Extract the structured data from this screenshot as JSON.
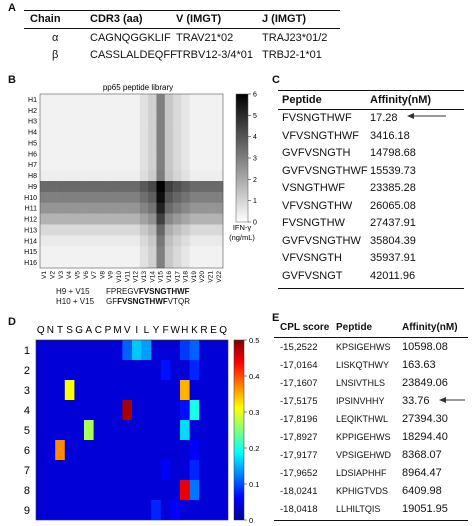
{
  "panel_a": {
    "label": "A",
    "headers": [
      "Chain",
      "CDR3 (aa)",
      "V (IMGT)",
      "J (IMGT)"
    ],
    "rows": [
      [
        "α",
        "CAGNQGGKLIF",
        "TRAV21*02",
        "TRAJ23*01/2"
      ],
      [
        "β",
        "CASSLALDEQFF",
        "TRBV12-3/4*01",
        "TRBJ2-1*01"
      ]
    ]
  },
  "panel_b": {
    "label": "B",
    "title": "pp65 peptide library",
    "colorbar_label_line1": "IFN-γ",
    "colorbar_label_line2": "(ng/mL)",
    "seq1": {
      "tag": "H9 + V15",
      "pre": "FPREGV",
      "bold": "FVSNGTHWF",
      "post": ""
    },
    "seq2": {
      "tag": "H10 + V15",
      "pre": "GF",
      "bold": "FVSNGTHWF",
      "post": "VTQR"
    }
  },
  "panel_c": {
    "label": "C",
    "headers": [
      "Peptide",
      "Affinity(nM)"
    ],
    "rows": [
      [
        "FVSNGTHWF",
        "17.28"
      ],
      [
        "VFVSNGTHWF",
        "3416.18"
      ],
      [
        "GVFVSNGTH",
        "14798.68"
      ],
      [
        "GVFVSNGTHWF",
        "15539.73"
      ],
      [
        "VSNGTHWF",
        "23385.28"
      ],
      [
        "VFVSNGTHW",
        "26065.08"
      ],
      [
        "FVSNGTHW",
        "27437.91"
      ],
      [
        "GVFVSNGTHW",
        "35804.39"
      ],
      [
        "VFVSNGTH",
        "35937.91"
      ],
      [
        "GVFVSNGT",
        "42011.96"
      ]
    ]
  },
  "panel_d": {
    "label": "D"
  },
  "panel_e": {
    "label": "E",
    "headers": [
      "CPL score",
      "Peptide",
      "Affinity(nM)"
    ],
    "rows": [
      [
        "-15,2522",
        "KPSIGEHWS",
        "10598.08"
      ],
      [
        "-17,0164",
        "LISKQTHWY",
        "163.63"
      ],
      [
        "-17,1607",
        "LNSIVTHLS",
        "23849.06"
      ],
      [
        "-17,5175",
        "IPSINVHHY",
        "33.76"
      ],
      [
        "-17,8196",
        "LEQIKTHWL",
        "27394.30"
      ],
      [
        "-17,8927",
        "KPPIGEHWS",
        "18294.40"
      ],
      [
        "-17,9177",
        "VPSIGEHWD",
        "8368.07"
      ],
      [
        "-17,9652",
        "LDSIAPHHF",
        "8964.47"
      ],
      [
        "-18,0241",
        "KPHIGTVDS",
        "6409.98"
      ],
      [
        "-18,0418",
        "LLHILTQIS",
        "19051.95"
      ]
    ]
  },
  "chart_data": [
    {
      "type": "heatmap",
      "title": "pp65 peptide library",
      "rows": [
        "H1",
        "H2",
        "H3",
        "H4",
        "H5",
        "H6",
        "H7",
        "H8",
        "H9",
        "H10",
        "H11",
        "H12",
        "H13",
        "H14",
        "H15",
        "H16"
      ],
      "columns": [
        "V1",
        "V2",
        "V3",
        "V4",
        "V5",
        "V6",
        "V7",
        "V8",
        "V9",
        "V10",
        "V11",
        "V12",
        "V13",
        "V14",
        "V15",
        "V16",
        "V17",
        "V18",
        "V19",
        "V20",
        "V21",
        "V22"
      ],
      "row_values": [
        0.3,
        0.3,
        0.3,
        0.3,
        0.3,
        0.3,
        0.3,
        0.4,
        3.5,
        3.0,
        2.5,
        1.8,
        0.9,
        0.5,
        0.3,
        0.3
      ],
      "col_values": [
        0,
        0,
        0,
        0,
        0,
        0,
        0,
        0,
        0,
        0,
        0,
        0,
        0.4,
        0.8,
        2.7,
        1.0,
        0.6,
        0.3,
        0,
        0,
        0,
        0
      ],
      "colorbar_ticks": [
        0,
        1,
        2,
        3,
        4,
        5,
        6
      ],
      "colorbar_label": "IFN-γ (ng/mL)",
      "zlim": [
        0,
        6
      ]
    },
    {
      "type": "heatmap",
      "columns": [
        "Q",
        "N",
        "T",
        "S",
        "G",
        "A",
        "C",
        "P",
        "M",
        "V",
        "I",
        "L",
        "Y",
        "F",
        "W",
        "H",
        "K",
        "R",
        "E",
        "Q"
      ],
      "rows": [
        "1",
        "2",
        "3",
        "4",
        "5",
        "6",
        "7",
        "8",
        "9"
      ],
      "background_value": 0.04,
      "colorbar_ticks": [
        0,
        0.1,
        0.2,
        0.3,
        0.4,
        0.5
      ],
      "zlim": [
        0,
        0.5
      ],
      "cells": [
        {
          "row": "1",
          "col": "I",
          "value": 0.16
        },
        {
          "row": "1",
          "col": "L",
          "value": 0.14
        },
        {
          "row": "1",
          "col": "V",
          "value": 0.11
        },
        {
          "row": "1",
          "col": "H",
          "value": 0.09
        },
        {
          "row": "1",
          "col": "K",
          "value": 0.11
        },
        {
          "row": "2",
          "col": "K",
          "value": 0.08
        },
        {
          "row": "2",
          "col": "F",
          "value": 0.07
        },
        {
          "row": "3",
          "col": "S",
          "value": 0.31
        },
        {
          "row": "3",
          "col": "H",
          "value": 0.35
        },
        {
          "row": "4",
          "col": "V",
          "value": 0.48
        },
        {
          "row": "4",
          "col": "K",
          "value": 0.2
        },
        {
          "row": "4",
          "col": "H",
          "value": 0.07
        },
        {
          "row": "5",
          "col": "A",
          "value": 0.27
        },
        {
          "row": "5",
          "col": "H",
          "value": 0.17
        },
        {
          "row": "6",
          "col": "T",
          "value": 0.37
        },
        {
          "row": "6",
          "col": "K",
          "value": 0.06
        },
        {
          "row": "7",
          "col": "K",
          "value": 0.08
        },
        {
          "row": "7",
          "col": "F",
          "value": 0.06
        },
        {
          "row": "8",
          "col": "H",
          "value": 0.45
        },
        {
          "row": "8",
          "col": "K",
          "value": 0.12
        },
        {
          "row": "9",
          "col": "Y",
          "value": 0.08
        },
        {
          "row": "9",
          "col": "W",
          "value": 0.06
        }
      ]
    }
  ]
}
